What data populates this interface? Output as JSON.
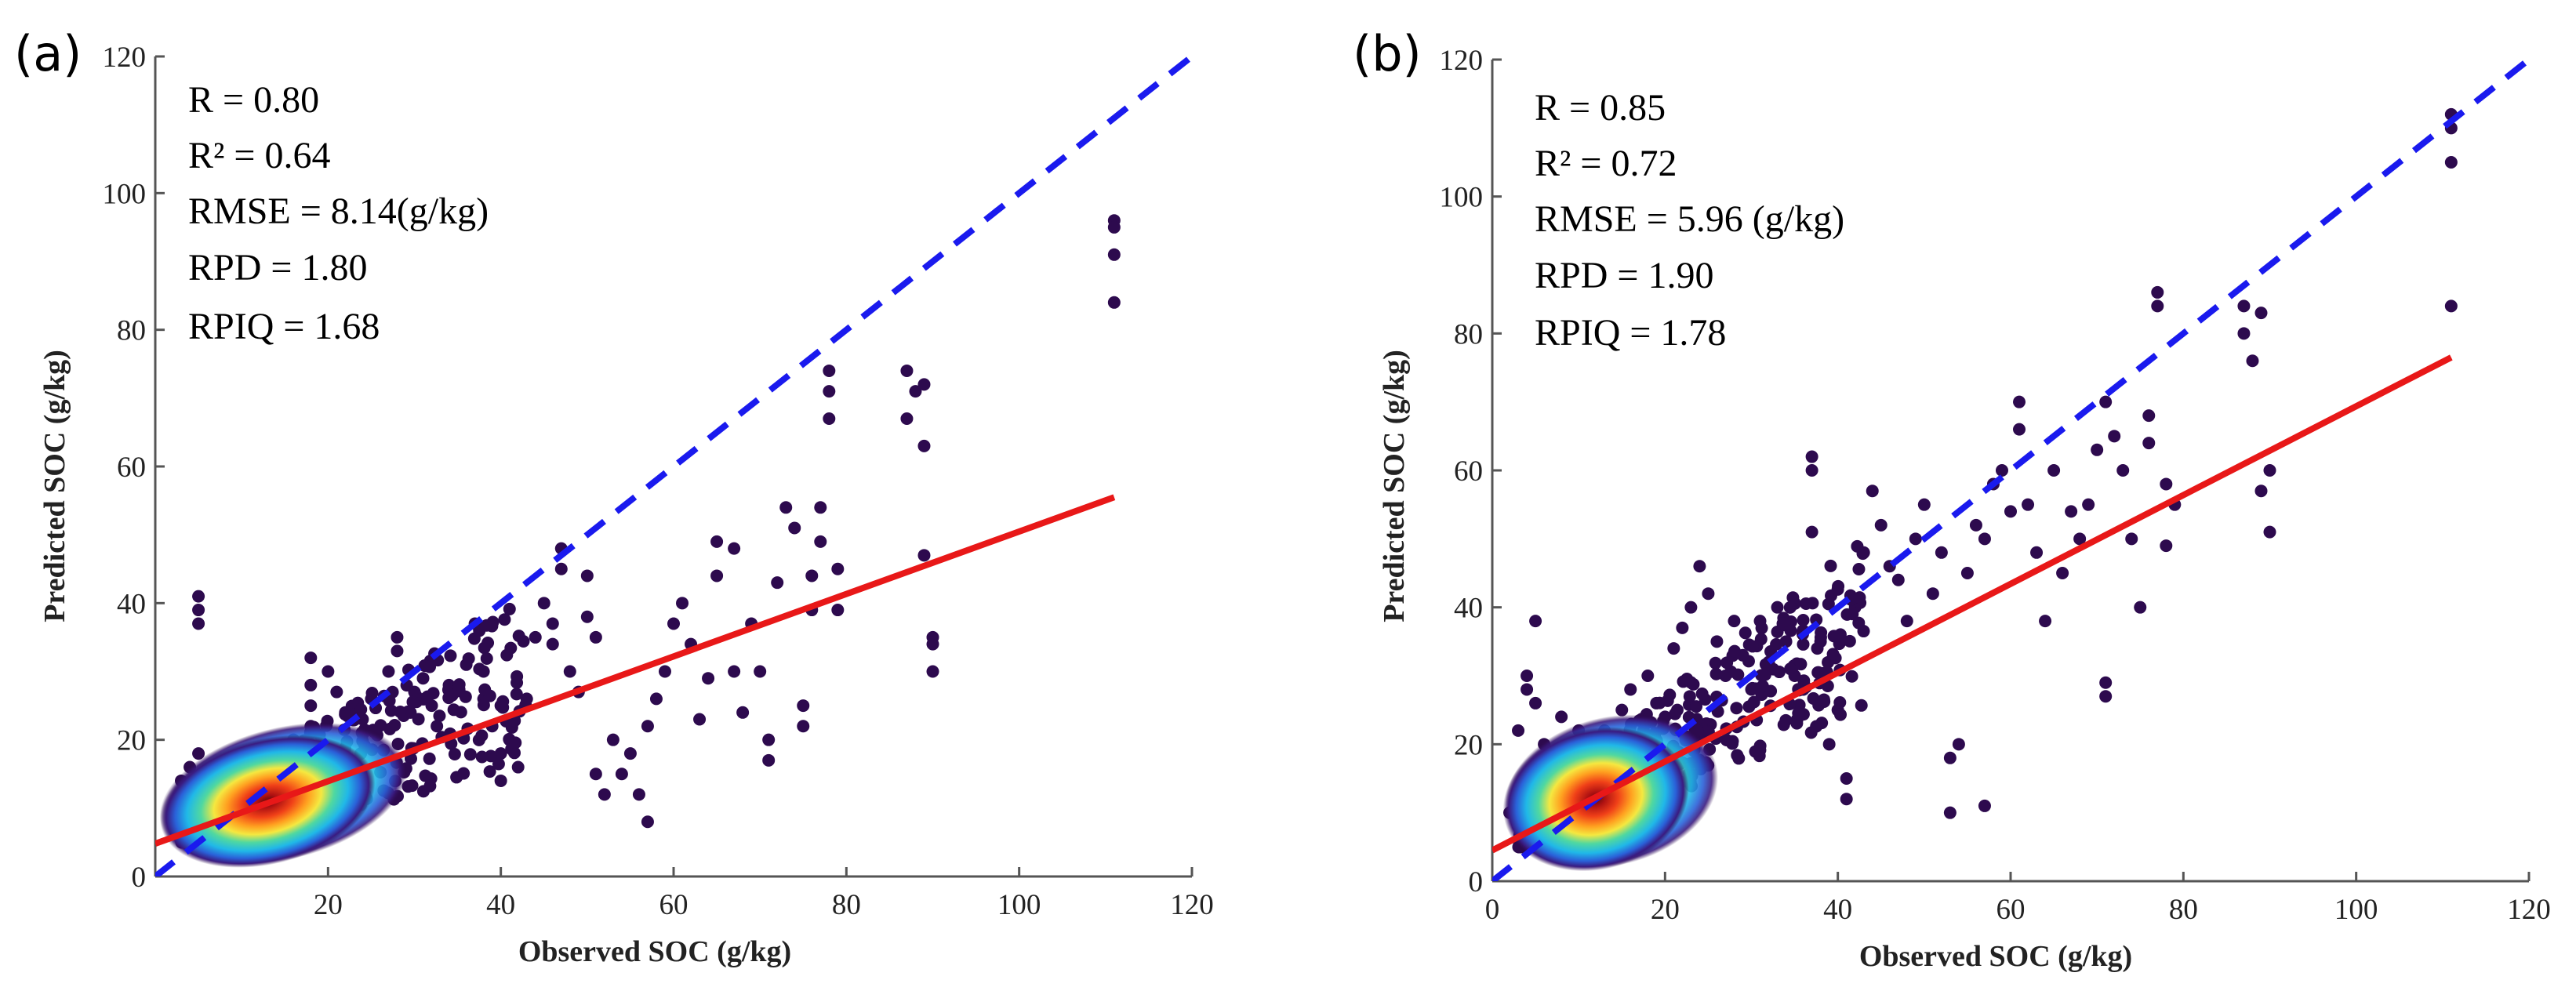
{
  "chart_data": [
    {
      "panel": "(a)",
      "type": "scatter",
      "xlabel": "Observed SOC (g/kg)",
      "ylabel": "Predicted SOC (g/kg)",
      "xlim": [
        0,
        120
      ],
      "ylim": [
        0,
        120
      ],
      "xticks": [
        20,
        40,
        60,
        80,
        100,
        120
      ],
      "yticks": [
        0,
        20,
        40,
        60,
        80,
        100,
        120
      ],
      "stats": [
        "R = 0.80",
        "R² = 0.64",
        "RMSE = 8.14(g/kg)",
        "RPD = 1.80",
        "RPIQ = 1.68"
      ],
      "identity_line": {
        "x": [
          0,
          120
        ],
        "y": [
          0,
          120
        ],
        "color": "#1a1aee",
        "style": "dashed"
      },
      "fit_line": {
        "x": [
          0,
          111
        ],
        "y": [
          4.8,
          55.5
        ],
        "color": "#e81818"
      },
      "dense_core": {
        "x": 13,
        "y": 11
      },
      "points": [
        [
          5,
          41
        ],
        [
          5,
          39
        ],
        [
          5,
          37
        ],
        [
          5,
          18
        ],
        [
          4,
          16
        ],
        [
          6,
          15
        ],
        [
          3,
          14
        ],
        [
          7,
          13
        ],
        [
          8,
          12
        ],
        [
          9,
          9
        ],
        [
          6,
          8
        ],
        [
          2,
          8
        ],
        [
          3,
          10
        ],
        [
          10,
          15
        ],
        [
          12,
          17
        ],
        [
          14,
          19
        ],
        [
          16,
          20
        ],
        [
          18,
          22
        ],
        [
          18,
          25
        ],
        [
          18,
          28
        ],
        [
          18,
          32
        ],
        [
          20,
          30
        ],
        [
          21,
          27
        ],
        [
          22,
          24
        ],
        [
          24,
          23
        ],
        [
          25,
          26
        ],
        [
          27,
          30
        ],
        [
          28,
          33
        ],
        [
          28,
          35
        ],
        [
          30,
          27
        ],
        [
          31,
          29
        ],
        [
          32,
          25
        ],
        [
          34,
          28
        ],
        [
          36,
          31
        ],
        [
          37,
          37
        ],
        [
          38,
          30
        ],
        [
          38,
          26
        ],
        [
          39,
          22
        ],
        [
          40,
          25
        ],
        [
          40,
          18
        ],
        [
          40,
          14
        ],
        [
          41,
          20
        ],
        [
          42,
          16
        ],
        [
          43,
          26
        ],
        [
          44,
          35
        ],
        [
          45,
          40
        ],
        [
          46,
          37
        ],
        [
          46,
          34
        ],
        [
          47,
          48
        ],
        [
          47,
          45
        ],
        [
          48,
          30
        ],
        [
          49,
          27
        ],
        [
          50,
          38
        ],
        [
          50,
          44
        ],
        [
          51,
          35
        ],
        [
          51,
          15
        ],
        [
          52,
          12
        ],
        [
          53,
          20
        ],
        [
          54,
          15
        ],
        [
          55,
          18
        ],
        [
          56,
          12
        ],
        [
          57,
          8
        ],
        [
          57,
          22
        ],
        [
          58,
          26
        ],
        [
          59,
          30
        ],
        [
          60,
          37
        ],
        [
          61,
          40
        ],
        [
          62,
          34
        ],
        [
          63,
          23
        ],
        [
          64,
          29
        ],
        [
          65,
          44
        ],
        [
          65,
          49
        ],
        [
          67,
          48
        ],
        [
          67,
          30
        ],
        [
          68,
          24
        ],
        [
          69,
          37
        ],
        [
          70,
          30
        ],
        [
          71,
          20
        ],
        [
          71,
          17
        ],
        [
          72,
          43
        ],
        [
          73,
          54
        ],
        [
          74,
          51
        ],
        [
          75,
          22
        ],
        [
          75,
          25
        ],
        [
          76,
          39
        ],
        [
          76,
          44
        ],
        [
          77,
          54
        ],
        [
          77,
          49
        ],
        [
          78,
          71
        ],
        [
          78,
          67
        ],
        [
          78,
          74
        ],
        [
          79,
          39
        ],
        [
          79,
          45
        ],
        [
          87,
          74
        ],
        [
          87,
          67
        ],
        [
          88,
          71
        ],
        [
          89,
          72
        ],
        [
          89,
          63
        ],
        [
          89,
          47
        ],
        [
          90,
          35
        ],
        [
          90,
          34
        ],
        [
          90,
          30
        ],
        [
          111,
          96
        ],
        [
          111,
          95
        ],
        [
          111,
          91
        ],
        [
          111,
          84
        ]
      ]
    },
    {
      "panel": "(b)",
      "type": "scatter",
      "xlabel": "Observed SOC (g/kg)",
      "ylabel": "Predicted SOC (g/kg)",
      "xlim": [
        0,
        120
      ],
      "ylim": [
        0,
        120
      ],
      "xticks": [
        0,
        20,
        40,
        60,
        80,
        100,
        120
      ],
      "yticks": [
        0,
        20,
        40,
        60,
        80,
        100,
        120
      ],
      "stats": [
        "R = 0.85",
        "R² = 0.72",
        "RMSE = 5.96 (g/kg)",
        "RPD = 1.90",
        "RPIQ = 1.78"
      ],
      "identity_line": {
        "x": [
          0,
          120
        ],
        "y": [
          0,
          120
        ],
        "color": "#1a1aee",
        "style": "dashed"
      },
      "fit_line": {
        "x": [
          0,
          111
        ],
        "y": [
          4.5,
          76.5
        ],
        "color": "#e81818"
      },
      "dense_core": {
        "x": 12,
        "y": 12
      },
      "points": [
        [
          5,
          38
        ],
        [
          4,
          30
        ],
        [
          4,
          28
        ],
        [
          5,
          26
        ],
        [
          3,
          22
        ],
        [
          6,
          20
        ],
        [
          8,
          24
        ],
        [
          10,
          22
        ],
        [
          2,
          10
        ],
        [
          3,
          8
        ],
        [
          7,
          17
        ],
        [
          11,
          20
        ],
        [
          13,
          22
        ],
        [
          15,
          25
        ],
        [
          16,
          28
        ],
        [
          18,
          30
        ],
        [
          19,
          26
        ],
        [
          20,
          24
        ],
        [
          21,
          34
        ],
        [
          22,
          37
        ],
        [
          23,
          40
        ],
        [
          24,
          46
        ],
        [
          25,
          42
        ],
        [
          26,
          35
        ],
        [
          27,
          30
        ],
        [
          28,
          38
        ],
        [
          29,
          33
        ],
        [
          30,
          28
        ],
        [
          31,
          38
        ],
        [
          32,
          32
        ],
        [
          33,
          40
        ],
        [
          34,
          35
        ],
        [
          35,
          30
        ],
        [
          36,
          28
        ],
        [
          37,
          62
        ],
        [
          37,
          60
        ],
        [
          37,
          51
        ],
        [
          38,
          35
        ],
        [
          39,
          20
        ],
        [
          40,
          25
        ],
        [
          41,
          15
        ],
        [
          41,
          12
        ],
        [
          42,
          40
        ],
        [
          43,
          48
        ],
        [
          44,
          57
        ],
        [
          45,
          52
        ],
        [
          46,
          46
        ],
        [
          47,
          44
        ],
        [
          48,
          38
        ],
        [
          49,
          50
        ],
        [
          50,
          55
        ],
        [
          51,
          42
        ],
        [
          52,
          48
        ],
        [
          53,
          18
        ],
        [
          53,
          10
        ],
        [
          54,
          20
        ],
        [
          55,
          45
        ],
        [
          56,
          52
        ],
        [
          57,
          50
        ],
        [
          57,
          11
        ],
        [
          58,
          58
        ],
        [
          59,
          60
        ],
        [
          60,
          54
        ],
        [
          61,
          70
        ],
        [
          61,
          66
        ],
        [
          62,
          55
        ],
        [
          63,
          48
        ],
        [
          64,
          38
        ],
        [
          65,
          60
        ],
        [
          66,
          45
        ],
        [
          67,
          54
        ],
        [
          68,
          50
        ],
        [
          69,
          55
        ],
        [
          70,
          63
        ],
        [
          71,
          70
        ],
        [
          71,
          29
        ],
        [
          71,
          27
        ],
        [
          72,
          65
        ],
        [
          73,
          60
        ],
        [
          74,
          50
        ],
        [
          75,
          40
        ],
        [
          76,
          68
        ],
        [
          76,
          64
        ],
        [
          77,
          86
        ],
        [
          77,
          84
        ],
        [
          78,
          58
        ],
        [
          78,
          49
        ],
        [
          79,
          55
        ],
        [
          87,
          84
        ],
        [
          87,
          80
        ],
        [
          88,
          76
        ],
        [
          89,
          83
        ],
        [
          89,
          57
        ],
        [
          90,
          60
        ],
        [
          90,
          51
        ],
        [
          111,
          112
        ],
        [
          111,
          110
        ],
        [
          111,
          105
        ],
        [
          111,
          84
        ]
      ]
    }
  ]
}
